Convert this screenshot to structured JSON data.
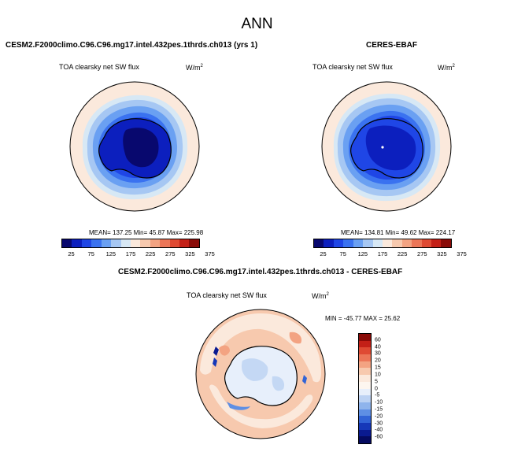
{
  "main_title": "ANN",
  "panels": [
    {
      "title": "CESM2.F2000climo.C96.C96.mg17.intel.432pes.1thrds.ch013 (yrs 1)",
      "variable": "TOA clearsky net SW flux",
      "units": "W/m2",
      "stats": {
        "mean": "137.25",
        "min": "45.87",
        "max": "225.98"
      },
      "stats_text": "MEAN= 137.25  Min=  45.87  Max= 225.98"
    },
    {
      "title": "CERES-EBAF",
      "variable": "TOA clearsky net SW flux",
      "units": "W/m2",
      "stats": {
        "mean": "134.81",
        "min": "49.62",
        "max": "224.17"
      },
      "stats_text": "MEAN= 134.81  Min=  49.62  Max= 224.17"
    },
    {
      "title": "CESM2.F2000climo.C96.C96.mg17.intel.432pes.1thrds.ch013 - CERES-EBAF",
      "variable": "TOA clearsky net SW flux",
      "units": "W/m2",
      "stats": {
        "min": "-45.77",
        "max": "25.62"
      },
      "stats_text": "MIN = -45.77 MAX =  25.62"
    }
  ],
  "field_colorbar": {
    "tick_labels": [
      "25",
      "75",
      "125",
      "175",
      "225",
      "275",
      "325",
      "375"
    ],
    "colors": [
      "#08086e",
      "#0c1fbe",
      "#1f46e6",
      "#3a72f0",
      "#6aa0f2",
      "#a6c7f3",
      "#d7e8f5",
      "#fbe9dc",
      "#f7c9ae",
      "#f3a382",
      "#ec7658",
      "#df4a33",
      "#c42017",
      "#8a0b08"
    ]
  },
  "diff_colorbar": {
    "tick_labels": [
      "60",
      "40",
      "30",
      "20",
      "15",
      "10",
      "5",
      "0",
      "-5",
      "-10",
      "-15",
      "-20",
      "-30",
      "-40",
      "-60"
    ],
    "colors": [
      "#8a0b08",
      "#c42017",
      "#df4a33",
      "#ec7658",
      "#f3a382",
      "#f7c9ae",
      "#fbe9dc",
      "#fdf6ef",
      "#e7effb",
      "#bcd2f3",
      "#8fb4ec",
      "#5e8fe4",
      "#3264d6",
      "#1638b8",
      "#0a1a90",
      "#050a60"
    ]
  }
}
